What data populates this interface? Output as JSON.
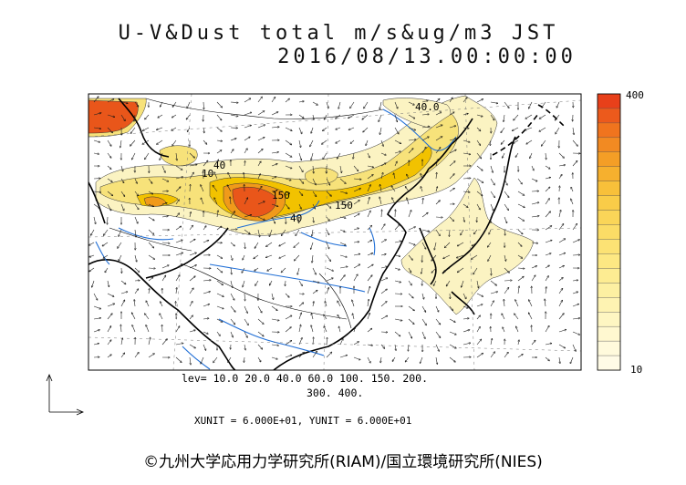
{
  "title_line1": "U-V&Dust total m/s&ug/m3 JST",
  "title_line2": "2016/08/13.00:00:00",
  "levels_line1": "lev= 10.0 20.0 40.0 60.0 100. 150. 200.",
  "levels_line2": "300. 400.",
  "unit_text": "XUNIT = 6.000E+01, YUNIT = 6.000E+01",
  "colorbar": {
    "max_label": "400",
    "min_label": "10"
  },
  "contour_labels": [
    "40.0",
    "40",
    "150",
    "150",
    "10",
    "40"
  ],
  "copyright": "©九州大学応用力学研究所(RIAM)/国立環境研究所(NIES)",
  "colors": {
    "land_line": "#000000",
    "river": "#1f6ed6",
    "dust_low": "#fbf3c2",
    "dust_mid": "#f7e27a",
    "dust_high": "#f2c200",
    "dust_very_high": "#f09a1a",
    "dust_peak": "#e9561a"
  }
}
